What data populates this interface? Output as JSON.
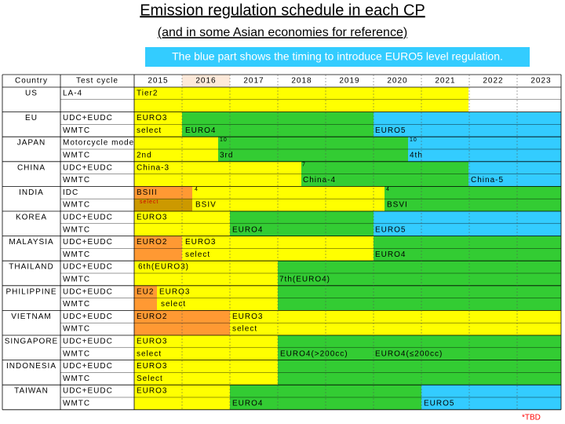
{
  "title": "Emission regulation schedule in each CP",
  "subtitle": "(and in some Asian economies for reference)",
  "note": "The blue part shows the timing to introduce EURO5 level regulation.",
  "header": {
    "country": "Country",
    "cycle": "Test cycle",
    "years": [
      "2015",
      "2016",
      "2017",
      "2018",
      "2019",
      "2020",
      "2021",
      "2022",
      "2023"
    ]
  },
  "countries": [
    {
      "name": "US",
      "cycles": [
        "LA-4"
      ],
      "labels": [
        "Tier2"
      ]
    },
    {
      "name": "EU",
      "cycles": [
        "UDC+EUDC",
        "WMTC"
      ],
      "labels": [
        "EURO3",
        "select",
        "EURO4",
        "EURO5"
      ]
    },
    {
      "name": "JAPAN",
      "cycles": [
        "Motorcycle mode",
        "WMTC"
      ],
      "labels": [
        "2nd",
        "10",
        "3rd",
        "10",
        "4th"
      ]
    },
    {
      "name": "CHINA",
      "cycles": [
        "UDC+EUDC",
        "WMTC"
      ],
      "labels": [
        "China-3",
        "7",
        "China-4",
        "China-5"
      ]
    },
    {
      "name": "INDIA",
      "cycles": [
        "IDC",
        "WMTC"
      ],
      "labels": [
        "BSIII",
        "select",
        "4",
        "BSIV",
        "4",
        "BSVI"
      ]
    },
    {
      "name": "KOREA",
      "cycles": [
        "UDC+EUDC",
        "WMTC"
      ],
      "labels": [
        "EURO3",
        "EURO4",
        "EURO5"
      ]
    },
    {
      "name": "MALAYSIA",
      "cycles": [
        "UDC+EUDC",
        "WMTC"
      ],
      "labels": [
        "EURO2",
        "EURO3",
        "select",
        "EURO4"
      ]
    },
    {
      "name": "THAILAND",
      "cycles": [
        "UDC+EUDC",
        "WMTC"
      ],
      "labels": [
        "6th(EURO3)",
        "7th(EURO4)"
      ]
    },
    {
      "name": "PHILIPPINE",
      "cycles": [
        "UDC+EUDC",
        "WMTC"
      ],
      "labels": [
        "EU2",
        "EURO3",
        "select"
      ]
    },
    {
      "name": "VIETNAM",
      "cycles": [
        "UDC+EUDC",
        "WMTC"
      ],
      "labels": [
        "EURO2",
        "EURO3",
        "select"
      ]
    },
    {
      "name": "SINGAPORE",
      "cycles": [
        "UDC+EUDC",
        "WMTC"
      ],
      "labels": [
        "EURO3",
        "select",
        "EURO4(>200cc)",
        "EURO4(≤200cc)"
      ]
    },
    {
      "name": "INDONESIA",
      "cycles": [
        "UDC+EUDC",
        "WMTC"
      ],
      "labels": [
        "EURO3",
        "Select"
      ]
    },
    {
      "name": "TAIWAN",
      "cycles": [
        "UDC+EUDC",
        "WMTC"
      ],
      "labels": [
        "EURO3",
        "EURO4",
        "EURO5"
      ]
    }
  ],
  "footnote": "*TBD"
}
